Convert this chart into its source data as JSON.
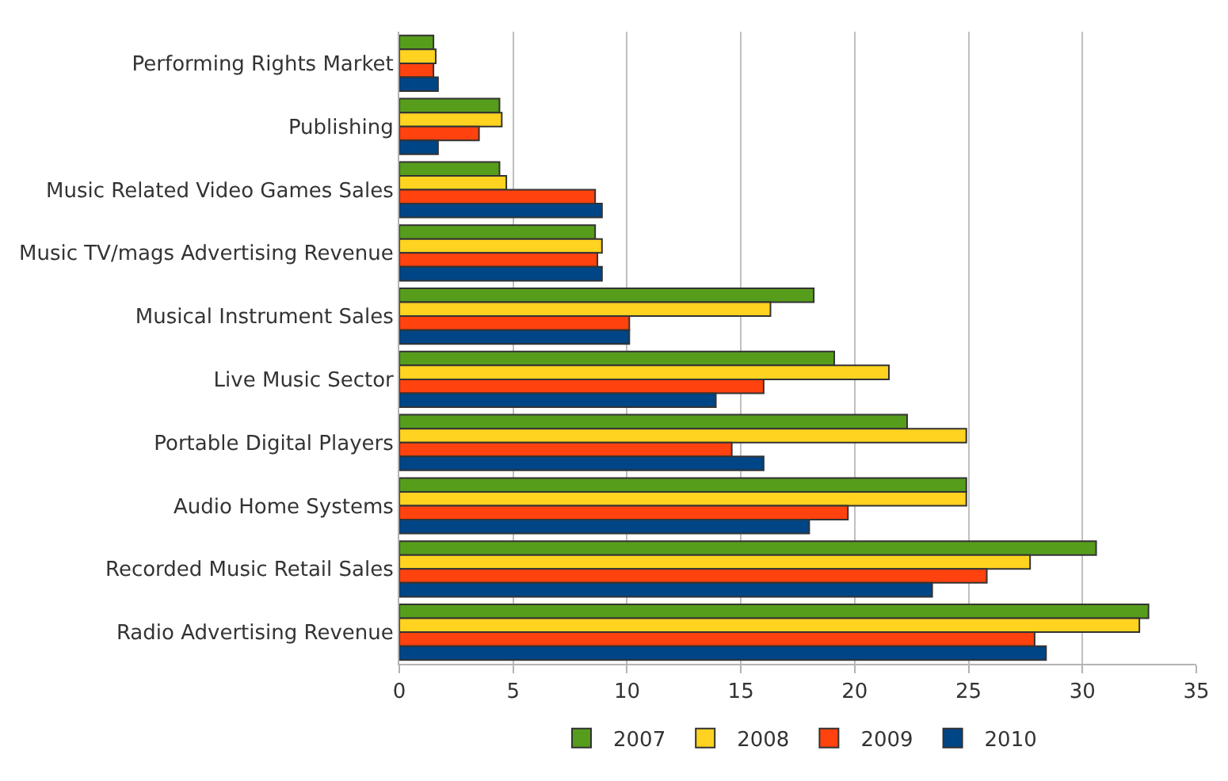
{
  "chart_data": {
    "type": "bar",
    "orientation": "horizontal",
    "categories": [
      "Performing Rights Market",
      "Publishing",
      "Music Related Video Games Sales",
      "Music TV/mags Advertising Revenue",
      "Musical Instrument Sales",
      "Live Music Sector",
      "Portable Digital Players",
      "Audio Home Systems",
      "Recorded Music Retail Sales",
      "Radio Advertising Revenue"
    ],
    "series": [
      {
        "name": "2007",
        "color": "#579d1c",
        "values": [
          1.5,
          4.4,
          4.4,
          8.6,
          18.2,
          19.1,
          22.3,
          24.9,
          30.6,
          32.9
        ]
      },
      {
        "name": "2008",
        "color": "#ffd320",
        "values": [
          1.6,
          4.5,
          4.7,
          8.9,
          16.3,
          21.5,
          24.9,
          24.9,
          27.7,
          32.5
        ]
      },
      {
        "name": "2009",
        "color": "#ff420e",
        "values": [
          1.5,
          3.5,
          8.6,
          8.7,
          10.1,
          16.0,
          14.6,
          19.7,
          25.8,
          27.9
        ]
      },
      {
        "name": "2010",
        "color": "#004586",
        "values": [
          1.7,
          1.7,
          8.9,
          8.9,
          10.1,
          13.9,
          16.0,
          18.0,
          23.4,
          28.4
        ]
      }
    ],
    "xlim": [
      0,
      35
    ],
    "xticks": [
      0,
      5,
      10,
      15,
      20,
      25,
      30,
      35
    ],
    "grid": "x",
    "legend": "bottom"
  }
}
